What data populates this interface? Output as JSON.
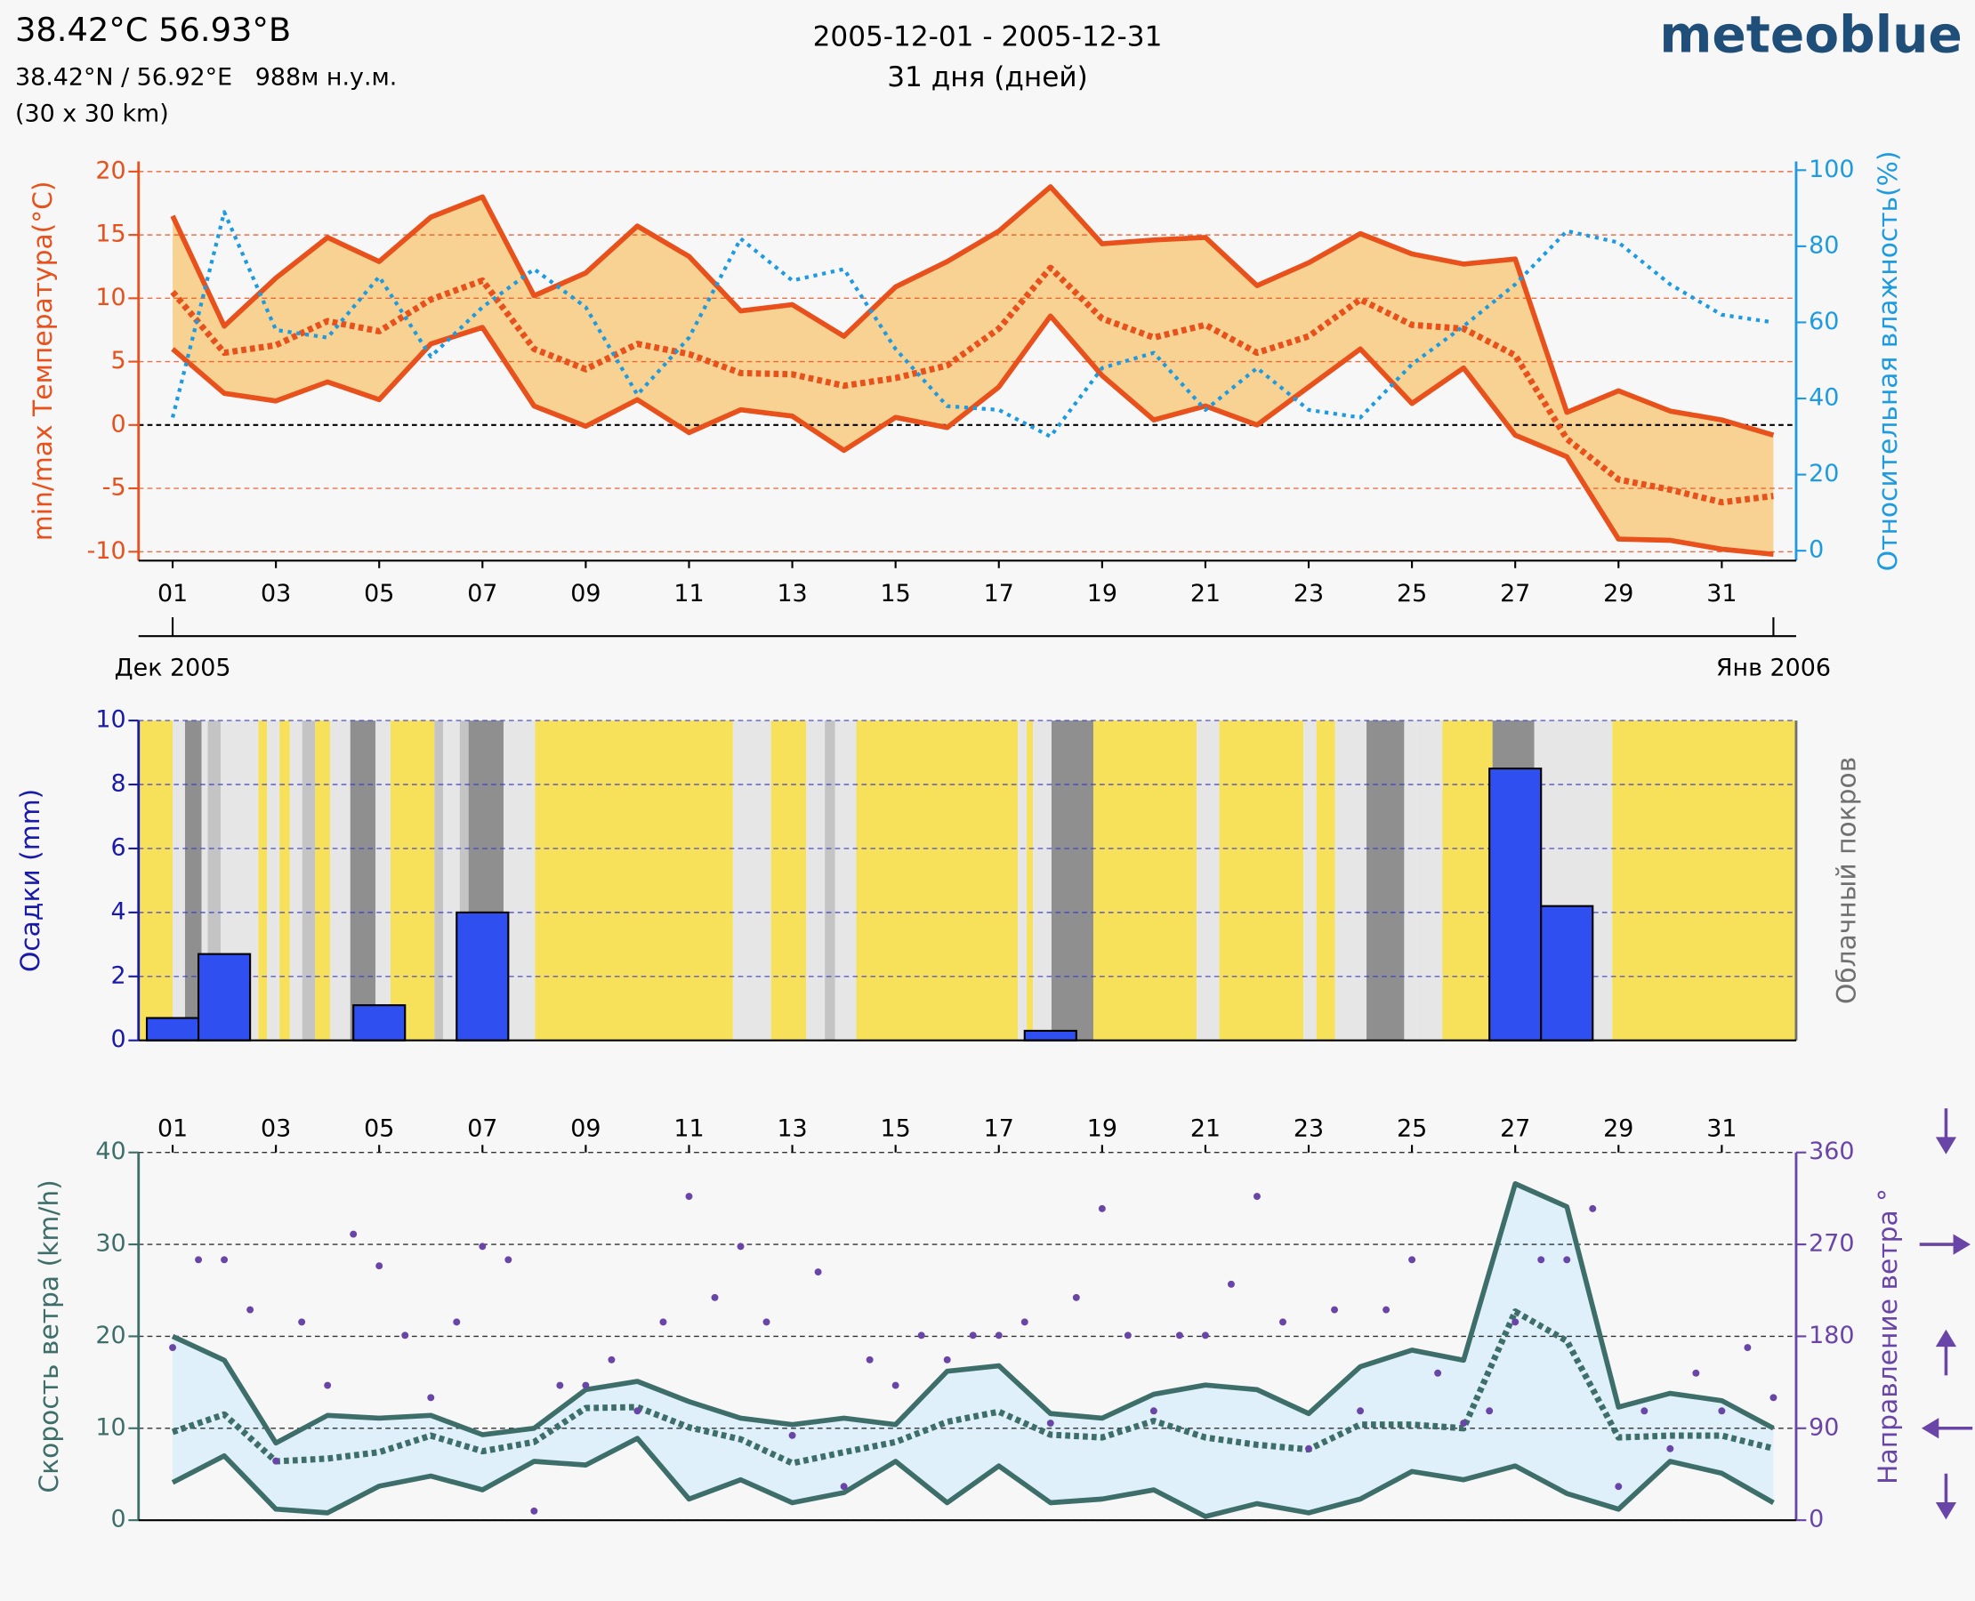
{
  "header": {
    "location": "38.42°C 56.93°B",
    "coords": "38.42°N / 56.92°E   988м н.у.м.",
    "resolution": "(30 x 30 km)",
    "period": "2005-12-01 - 2005-12-31",
    "days": "31 дня (дней)",
    "brand": "meteoblue"
  },
  "chart_data": [
    {
      "type": "line",
      "ylabel": "min/max Температура(°C)",
      "y2label": "Относительная влажность(%)",
      "ylabel_color": "#e8501c",
      "y2label_color": "#1e9be0",
      "x": [
        1,
        2,
        3,
        4,
        5,
        6,
        7,
        8,
        9,
        10,
        11,
        12,
        13,
        14,
        15,
        16,
        17,
        18,
        19,
        20,
        21,
        22,
        23,
        24,
        25,
        26,
        27,
        28,
        29,
        30,
        31,
        32
      ],
      "xlim": [
        0.34,
        32.44
      ],
      "xticks": [
        {
          "value": 1,
          "label": "01"
        },
        {
          "value": 3,
          "label": "03"
        },
        {
          "value": 5,
          "label": "05"
        },
        {
          "value": 7,
          "label": "07"
        },
        {
          "value": 9,
          "label": "09"
        },
        {
          "value": 11,
          "label": "11"
        },
        {
          "value": 13,
          "label": "13"
        },
        {
          "value": 15,
          "label": "15"
        },
        {
          "value": 17,
          "label": "17"
        },
        {
          "value": 19,
          "label": "19"
        },
        {
          "value": 21,
          "label": "21"
        },
        {
          "value": 23,
          "label": "23"
        },
        {
          "value": 25,
          "label": "25"
        },
        {
          "value": 27,
          "label": "27"
        },
        {
          "value": 29,
          "label": "29"
        },
        {
          "value": 31,
          "label": "31"
        }
      ],
      "xticks_position": "bottom",
      "month_labels": [
        {
          "value": 1,
          "label": "Дек 2005"
        },
        {
          "value": 32,
          "label": "Янв 2006"
        }
      ],
      "ylim": [
        -10.7,
        20.8
      ],
      "yticks": [
        -10,
        -5,
        0,
        5,
        10,
        15,
        20
      ],
      "y2lim": [
        -2.6,
        102.3
      ],
      "y2ticks": [
        0,
        20,
        40,
        60,
        80,
        100
      ],
      "grid": true,
      "grid_color": "#e8501c",
      "zero_line_color": "#000000",
      "band_color": "#f7d293",
      "series": [
        {
          "color": "#e8501c",
          "style": "solid",
          "values": [
            16.5,
            7.8,
            11.6,
            14.8,
            12.9,
            16.4,
            18,
            10.2,
            12,
            15.7,
            13.3,
            9,
            9.5,
            7,
            10.9,
            12.9,
            15.3,
            18.8,
            14.3,
            14.6,
            14.8,
            11,
            12.8,
            15.1,
            13.5,
            12.7,
            13.1,
            1,
            2.7,
            1.1,
            0.4,
            -0.8
          ]
        },
        {
          "color": "#e8501c",
          "style": "dotted",
          "values": [
            10.5,
            5.7,
            6.3,
            8.2,
            7.4,
            9.9,
            11.4,
            6,
            4.4,
            6.4,
            5.6,
            4.1,
            4,
            3.1,
            3.7,
            4.7,
            7.6,
            12.4,
            8.4,
            6.9,
            7.9,
            5.7,
            7,
            9.9,
            7.9,
            7.6,
            5.5,
            -1.1,
            -4.3,
            -5.1,
            -6.1,
            -5.6
          ]
        },
        {
          "color": "#e8501c",
          "style": "solid",
          "values": [
            6,
            2.5,
            1.9,
            3.4,
            2,
            6.4,
            7.7,
            1.5,
            -0.1,
            2,
            -0.6,
            1.2,
            0.7,
            -2,
            0.6,
            -0.2,
            3,
            8.6,
            3.9,
            0.4,
            1.5,
            0,
            3,
            6,
            1.7,
            4.5,
            -0.8,
            -2.5,
            -9,
            -9.1,
            -9.8,
            -10.2
          ]
        },
        {
          "color": "#1e9be0",
          "style": "dotted-thin",
          "axis": "y2",
          "values": [
            35,
            89,
            58,
            56,
            72,
            51,
            64,
            74,
            64,
            41,
            56,
            82,
            71,
            74,
            53,
            38,
            37,
            30,
            48,
            52,
            37,
            48,
            37,
            35,
            49,
            59,
            70,
            84,
            81,
            70,
            62,
            60
          ]
        }
      ]
    },
    {
      "type": "bar",
      "ylabel": "Осадки (mm)",
      "y2label": "Облачный покров",
      "ylabel_color": "#1a1aa8",
      "y2label_color": "#707070",
      "xlim": [
        0.34,
        32.44
      ],
      "x": [
        1,
        2,
        5,
        7,
        18,
        27,
        28
      ],
      "values": [
        0.7,
        2.7,
        1.1,
        4,
        0.3,
        8.5,
        4.2
      ],
      "color": "#2f4ff0",
      "ylim": [
        0,
        10
      ],
      "yticks": [
        0,
        2,
        4,
        6,
        8,
        10
      ],
      "grid": true,
      "grid_color": "#3a3ad0",
      "cloud_cover": {
        "edges": [
          0.34,
          1,
          1.24,
          1.56,
          1.68,
          1.93,
          2.66,
          2.83,
          3.07,
          3.27,
          3.51,
          3.76,
          4.05,
          4.44,
          4.93,
          5.22,
          6.07,
          6.24,
          6.56,
          6.73,
          7.41,
          8.02,
          11.85,
          12.59,
          13.27,
          13.63,
          13.83,
          14.24,
          17.37,
          17.54,
          17.66,
          18.02,
          18.83,
          20.83,
          21.27,
          22.9,
          23.15,
          23.51,
          24.12,
          24.85,
          25.1,
          25.59,
          26.56,
          27.37,
          28.88,
          32.44
        ],
        "levels": [
          0,
          1,
          3,
          1,
          2,
          1,
          0,
          1,
          0,
          1,
          2,
          0,
          1,
          3,
          1,
          0,
          2,
          1,
          2,
          3,
          1,
          0,
          1,
          0,
          1,
          2,
          1,
          0,
          1,
          0,
          1,
          3,
          0,
          1,
          0,
          1,
          0,
          1,
          3,
          1,
          1,
          0,
          3,
          1,
          0
        ],
        "colors": [
          "#f7e05a",
          "#e6e6e6",
          "#c4c4c4",
          "#8f8f8f"
        ]
      }
    },
    {
      "type": "line",
      "ylabel": "Скорость ветра (km/h)",
      "y2label": "Направление ветра °",
      "ylabel_color": "#3e6e6a",
      "y2label_color": "#6a45a8",
      "x": [
        1,
        2,
        3,
        4,
        5,
        6,
        7,
        8,
        9,
        10,
        11,
        12,
        13,
        14,
        15,
        16,
        17,
        18,
        19,
        20,
        21,
        22,
        23,
        24,
        25,
        26,
        27,
        28,
        29,
        30,
        31,
        32
      ],
      "xlim": [
        0.34,
        32.44
      ],
      "xticks": [
        {
          "value": 1,
          "label": "01"
        },
        {
          "value": 3,
          "label": "03"
        },
        {
          "value": 5,
          "label": "05"
        },
        {
          "value": 7,
          "label": "07"
        },
        {
          "value": 9,
          "label": "09"
        },
        {
          "value": 11,
          "label": "11"
        },
        {
          "value": 13,
          "label": "13"
        },
        {
          "value": 15,
          "label": "15"
        },
        {
          "value": 17,
          "label": "17"
        },
        {
          "value": 19,
          "label": "19"
        },
        {
          "value": 21,
          "label": "21"
        },
        {
          "value": 23,
          "label": "23"
        },
        {
          "value": 25,
          "label": "25"
        },
        {
          "value": 27,
          "label": "27"
        },
        {
          "value": 29,
          "label": "29"
        },
        {
          "value": 31,
          "label": "31"
        }
      ],
      "xticks_position": "top",
      "ylim": [
        0,
        40
      ],
      "yticks": [
        0,
        10,
        20,
        30,
        40
      ],
      "y2lim": [
        0,
        360
      ],
      "y2ticks": [
        0,
        90,
        180,
        270,
        360
      ],
      "grid": true,
      "grid_color": "#000000",
      "band_color": "#dff0fa",
      "series": [
        {
          "color": "#3e6e6a",
          "style": "solid",
          "values": [
            20,
            17.4,
            8.4,
            11.4,
            11.1,
            11.4,
            9.3,
            10,
            14.2,
            15.1,
            12.9,
            11.1,
            10.4,
            11.1,
            10.4,
            16.2,
            16.8,
            11.6,
            11.1,
            13.7,
            14.7,
            14.2,
            11.6,
            16.7,
            18.5,
            17.4,
            36.6,
            34.1,
            12.3,
            13.8,
            13,
            10
          ]
        },
        {
          "color": "#3e6e6a",
          "style": "dotted",
          "values": [
            9.6,
            11.5,
            6.4,
            6.7,
            7.4,
            9.2,
            7.5,
            8.5,
            12.2,
            12.3,
            10.1,
            8.8,
            6.2,
            7.4,
            8.5,
            10.7,
            11.8,
            9.3,
            9,
            10.8,
            9,
            8.2,
            7.7,
            10.4,
            10.4,
            10,
            22.7,
            19.5,
            9,
            9.2,
            9.2,
            7.8
          ]
        },
        {
          "color": "#3e6e6a",
          "style": "solid",
          "values": [
            4.1,
            7,
            1.2,
            0.8,
            3.7,
            4.8,
            3.3,
            6.4,
            6,
            8.9,
            2.3,
            4.4,
            1.9,
            3,
            6.4,
            1.9,
            5.9,
            1.9,
            2.3,
            3.3,
            0.4,
            1.8,
            0.8,
            2.3,
            5.3,
            4.4,
            5.9,
            2.9,
            1.2,
            6.4,
            5.1,
            1.9
          ]
        },
        {
          "type": "scatter",
          "color": "#6a45a8",
          "axis": "y2",
          "x": [
            1,
            1.5,
            2,
            2.5,
            3,
            3.5,
            4,
            4.5,
            5,
            5.5,
            6,
            6.5,
            7,
            7.5,
            8,
            8.5,
            9,
            9.5,
            10,
            10.5,
            11,
            11.5,
            12,
            12.5,
            13,
            13.5,
            14,
            14.5,
            15,
            15.5,
            16,
            16.5,
            17,
            17.5,
            18,
            18.5,
            19,
            19.5,
            20,
            20.5,
            21,
            21.5,
            22,
            22.5,
            23,
            23.5,
            24,
            24.5,
            25,
            25.5,
            26,
            26.5,
            27,
            27.5,
            28,
            28.5,
            29,
            29.5,
            30,
            30.5,
            31,
            31.5,
            32
          ],
          "values": [
            169,
            255,
            255,
            206,
            58,
            194,
            132,
            280,
            249,
            181,
            120,
            194,
            268,
            255,
            9,
            132,
            132,
            157,
            107,
            194,
            317,
            218,
            268,
            194,
            83,
            243,
            33,
            157,
            132,
            181,
            157,
            181,
            181,
            194,
            95,
            218,
            305,
            181,
            107,
            181,
            181,
            231,
            317,
            194,
            70,
            206,
            107,
            206,
            255,
            144,
            95,
            107,
            194,
            255,
            255,
            305,
            33,
            107,
            70,
            144,
            107,
            169,
            120
          ]
        }
      ]
    }
  ]
}
